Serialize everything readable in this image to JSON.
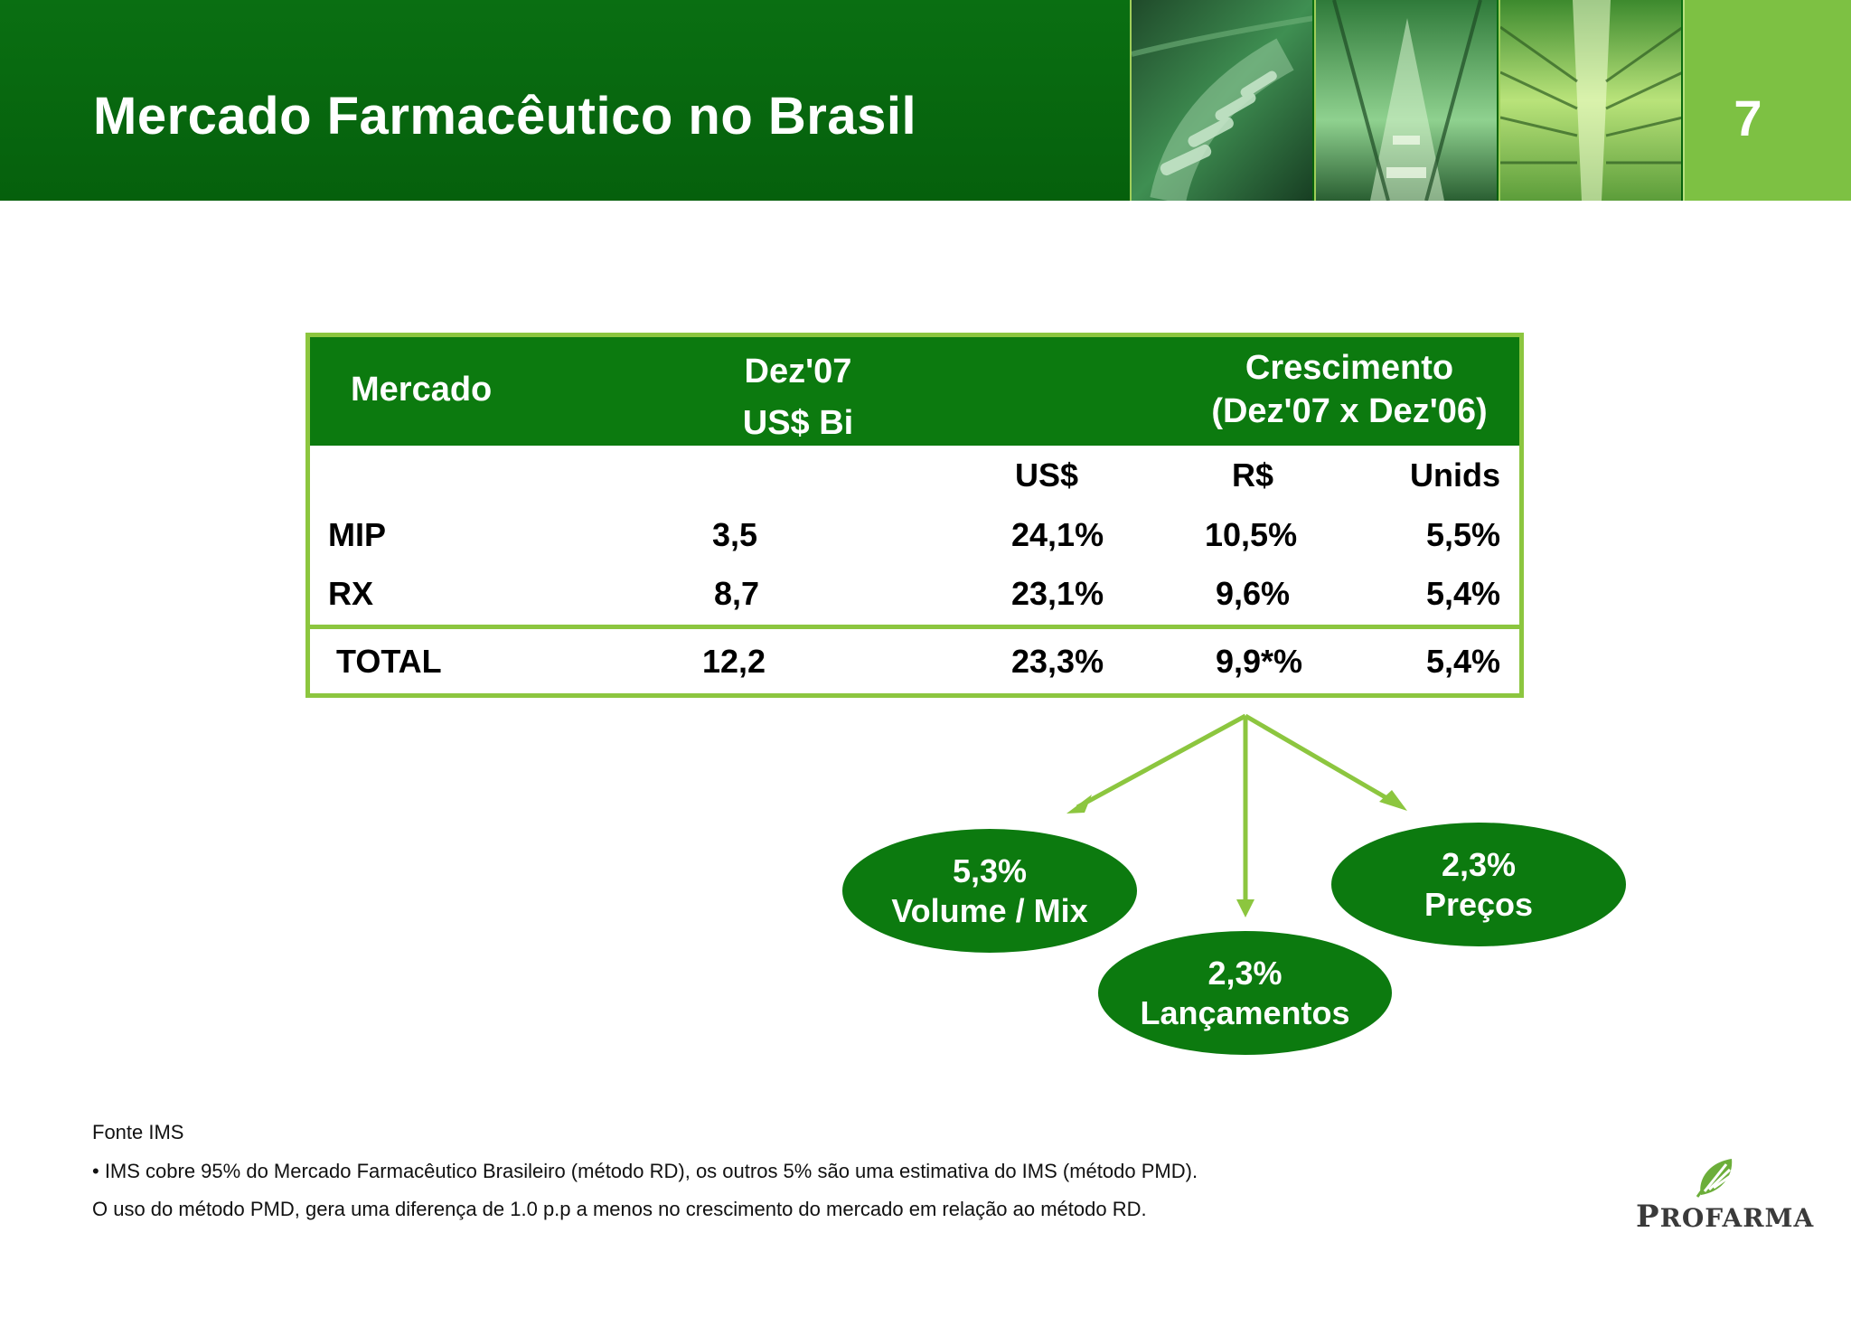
{
  "header": {
    "title": "Mercado Farmacêutico no Brasil",
    "page_number": "7",
    "photos": [
      "conveyor-photo",
      "sorting-photo",
      "warehouse-photo"
    ]
  },
  "table": {
    "headers": {
      "mercado": "Mercado",
      "dez_line1": "Dez'07",
      "dez_line2": "US$ Bi",
      "cresc_line1": "Crescimento",
      "cresc_line2": "(Dez'07 x Dez'06)"
    },
    "subheaders": {
      "usd": "US$",
      "brl": "R$",
      "units": "Unids"
    },
    "rows": [
      {
        "name": "MIP",
        "value": "3,5",
        "usd": "24,1%",
        "brl": "10,5%",
        "units": "5,5%"
      },
      {
        "name": "RX",
        "value": "8,7",
        "usd": "23,1%",
        "brl": "9,6%",
        "units": "5,4%"
      }
    ],
    "total": {
      "name": "TOTAL",
      "value": "12,2",
      "usd": "23,3%",
      "brl": "9,9*%",
      "units": "5,4%"
    }
  },
  "breakdown": {
    "volume": {
      "value": "5,3%",
      "label": "Volume / Mix"
    },
    "lancamentos": {
      "value": "2,3%",
      "label": "Lançamentos"
    },
    "precos": {
      "value": "2,3%",
      "label": "Preços"
    }
  },
  "footnotes": {
    "source": "Fonte IMS",
    "note1": "• IMS cobre 95% do Mercado Farmacêutico Brasileiro (método RD), os outros 5% são uma estimativa do IMS (método PMD).",
    "note2": "O uso do método PMD, gera uma diferença de 1.0 p.p a menos no crescimento do mercado em relação ao método RD."
  },
  "logo": {
    "first": "P",
    "rest": "ROFARMA"
  },
  "colors": {
    "dark_green": "#0c7a0f",
    "header_green": "#0a6f12",
    "light_green": "#8cc63f",
    "accent_green": "#7dc143"
  }
}
